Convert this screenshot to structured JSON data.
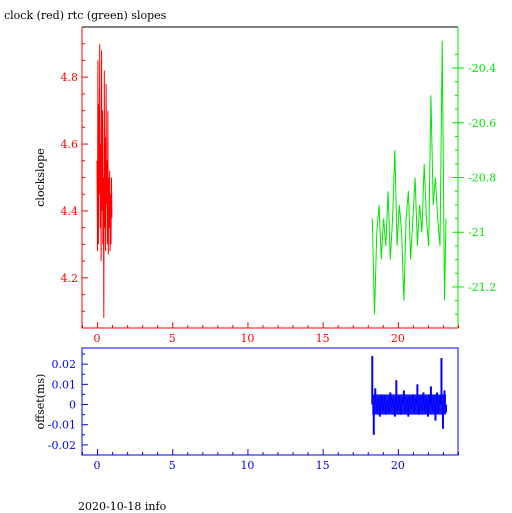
{
  "title": "clock (red) rtc (green) slopes",
  "footer": "2020-10-18 info",
  "colors": {
    "clock": "#ff0000",
    "rtc": "#00e600",
    "offset": "#0000ff",
    "frame": "#000000"
  },
  "chart_data": [
    {
      "type": "line",
      "title": "clock (red) rtc (green) slopes",
      "xlabel": "",
      "ylabel": "clockslope",
      "xlim": [
        -1,
        24
      ],
      "xticks": [
        0,
        5,
        10,
        15,
        20
      ],
      "ylim": [
        4.05,
        4.95
      ],
      "yticks": [
        4.2,
        4.4,
        4.6,
        4.8
      ],
      "y2lim": [
        -21.35,
        -20.25
      ],
      "y2ticks": [
        -21.2,
        -21,
        -20.8,
        -20.6,
        -20.4
      ],
      "series": [
        {
          "name": "clock",
          "axis": "left",
          "x": [
            0.0,
            0.03,
            0.06,
            0.09,
            0.12,
            0.15,
            0.18,
            0.21,
            0.24,
            0.27,
            0.3,
            0.33,
            0.36,
            0.39,
            0.42,
            0.45,
            0.48,
            0.51,
            0.54,
            0.57,
            0.6,
            0.63,
            0.66,
            0.69,
            0.72,
            0.75,
            0.78,
            0.81,
            0.84,
            0.87,
            0.9,
            0.93,
            0.96,
            0.99
          ],
          "y": [
            4.55,
            4.28,
            4.85,
            4.3,
            4.72,
            4.45,
            4.9,
            4.35,
            4.6,
            4.25,
            4.88,
            4.4,
            4.7,
            4.3,
            4.5,
            4.08,
            4.82,
            4.35,
            4.62,
            4.28,
            4.78,
            4.42,
            4.55,
            4.3,
            4.7,
            4.27,
            4.5,
            4.35,
            4.52,
            4.28,
            4.45,
            4.3,
            4.5,
            4.38
          ]
        },
        {
          "name": "rtc",
          "axis": "right",
          "x": [
            18.3,
            18.45,
            18.6,
            18.75,
            18.9,
            19.05,
            19.2,
            19.35,
            19.5,
            19.65,
            19.8,
            19.95,
            20.1,
            20.25,
            20.4,
            20.55,
            20.7,
            20.85,
            21.0,
            21.15,
            21.3,
            21.45,
            21.6,
            21.75,
            21.9,
            22.05,
            22.2,
            22.35,
            22.5,
            22.65,
            22.8,
            22.95,
            23.1,
            23.2
          ],
          "y": [
            -20.95,
            -21.3,
            -21.0,
            -20.9,
            -21.1,
            -20.95,
            -21.05,
            -20.85,
            -21.1,
            -20.95,
            -20.7,
            -21.05,
            -20.9,
            -21.0,
            -21.25,
            -20.95,
            -20.85,
            -21.1,
            -20.95,
            -20.8,
            -21.05,
            -20.9,
            -21.0,
            -20.75,
            -20.95,
            -21.05,
            -20.5,
            -20.9,
            -20.8,
            -20.95,
            -21.05,
            -20.3,
            -21.25,
            -20.95
          ]
        }
      ]
    },
    {
      "type": "scatter",
      "xlabel": "",
      "ylabel": "offset(ms)",
      "xlim": [
        -1,
        24
      ],
      "xticks": [
        0,
        5,
        10,
        15,
        20
      ],
      "ylim": [
        -0.025,
        0.028
      ],
      "yticks": [
        -0.02,
        -0.01,
        0,
        0.01,
        0.02
      ],
      "ytick_labels": [
        "-0.02",
        "-0.01",
        "0",
        "0.01",
        "0.02"
      ],
      "series": [
        {
          "name": "offset",
          "x": [
            18.3,
            18.4,
            18.5,
            18.6,
            18.7,
            18.8,
            18.9,
            19.0,
            19.1,
            19.2,
            19.3,
            19.4,
            19.5,
            19.6,
            19.7,
            19.8,
            19.9,
            20.0,
            20.1,
            20.2,
            20.3,
            20.4,
            20.5,
            20.6,
            20.7,
            20.8,
            20.9,
            21.0,
            21.1,
            21.2,
            21.3,
            21.4,
            21.5,
            21.6,
            21.7,
            21.8,
            21.9,
            22.0,
            22.1,
            22.2,
            22.3,
            22.4,
            22.5,
            22.6,
            22.7,
            22.8,
            22.9,
            23.0,
            23.1,
            23.2
          ],
          "y": [
            0.024,
            -0.015,
            0.008,
            -0.004,
            0.003,
            -0.006,
            0.005,
            -0.003,
            0.004,
            -0.005,
            0.002,
            -0.004,
            0.006,
            -0.002,
            0.003,
            -0.006,
            0.012,
            -0.003,
            0.004,
            -0.005,
            0.002,
            0.007,
            -0.004,
            0.003,
            -0.006,
            0.004,
            -0.002,
            0.005,
            -0.004,
            0.003,
            0.01,
            -0.005,
            0.004,
            -0.003,
            0.006,
            -0.004,
            0.003,
            -0.006,
            0.005,
            0.009,
            -0.003,
            0.004,
            -0.008,
            0.006,
            -0.004,
            0.004,
            0.023,
            -0.012,
            0.007,
            -0.004
          ]
        }
      ]
    }
  ]
}
